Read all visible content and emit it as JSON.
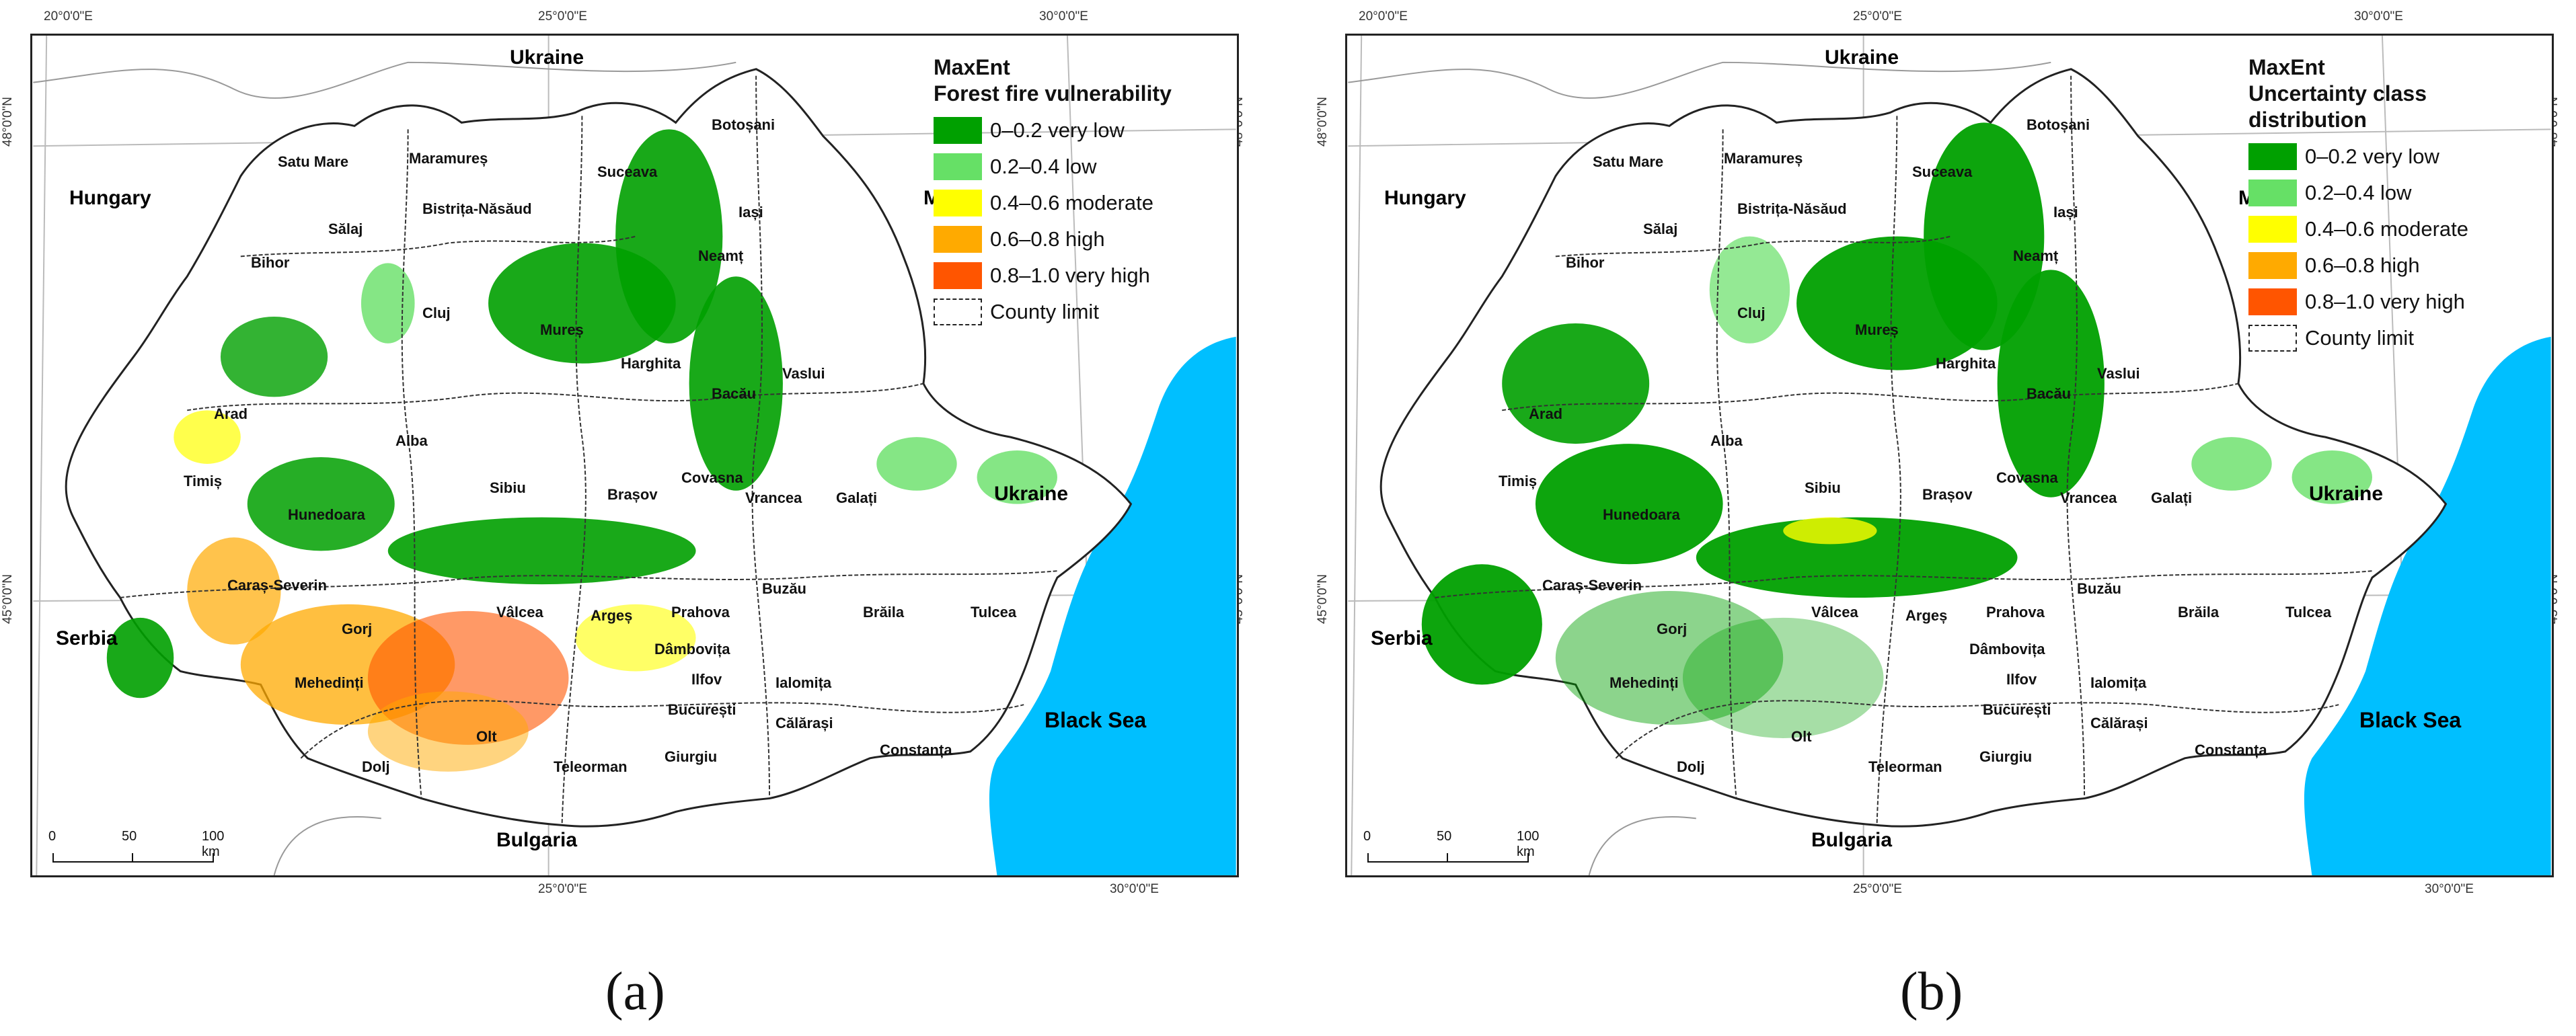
{
  "colors": {
    "very_low": "#00a000",
    "low": "#66e066",
    "moderate": "#ffff00",
    "high": "#ffaa00",
    "very_high": "#ff5500",
    "sea": "#00bfff",
    "county_border": "#333333",
    "neighbor_border": "#999999"
  },
  "coords": {
    "top": [
      "20°0'0\"E",
      "25°0'0\"E",
      "30°0'0\"E"
    ],
    "bottom": [
      "25°0'0\"E",
      "30°0'0\"E"
    ],
    "lat_48": "48°0'0\"N",
    "lat_45": "45°0'0\"N"
  },
  "labels": {
    "countries": [
      "Ukraine",
      "Hungary",
      "Serbia",
      "Bulgaria",
      "Ukraine",
      "M"
    ],
    "sea": "Black Sea",
    "counties": [
      "Satu Mare",
      "Maramureș",
      "Botoșani",
      "Suceava",
      "Sălaj",
      "Bistrița-Năsăud",
      "Iași",
      "Bihor",
      "Neamț",
      "Cluj",
      "Mureș",
      "Harghita",
      "Vaslui",
      "Arad",
      "Bacău",
      "Alba",
      "Timiș",
      "Sibiu",
      "Brașov",
      "Covasna",
      "Vrancea",
      "Galați",
      "Hunedoara",
      "Caraș-Severin",
      "Buzău",
      "Vâlcea",
      "Argeș",
      "Prahova",
      "Brăila",
      "Tulcea",
      "Gorj",
      "Dâmbovița",
      "Mehedinți",
      "Ilfov",
      "Ialomița",
      "București",
      "Călărași",
      "Olt",
      "Dolj",
      "Teleorman",
      "Giurgiu",
      "Constanța"
    ]
  },
  "scale": {
    "labels": [
      "0",
      "50",
      "100 km"
    ]
  },
  "panel_a": {
    "caption": "(a)",
    "legend_title_1": "MaxEnt",
    "legend_title_2": "Forest fire vulnerability",
    "legend": [
      "0–0.2 very low",
      "0.2–0.4 low",
      "0.4–0.6 moderate",
      "0.6–0.8 high",
      "0.8–1.0 very high",
      "County limit"
    ]
  },
  "panel_b": {
    "caption": "(b)",
    "legend_title_1": "MaxEnt",
    "legend_title_2": "Uncertainty class distribution",
    "legend": [
      "0–0.2 very low",
      "0.2–0.4 low",
      "0.4–0.6 moderate",
      "0.6–0.8 high",
      "0.8–1.0 very high",
      "County limit"
    ]
  }
}
